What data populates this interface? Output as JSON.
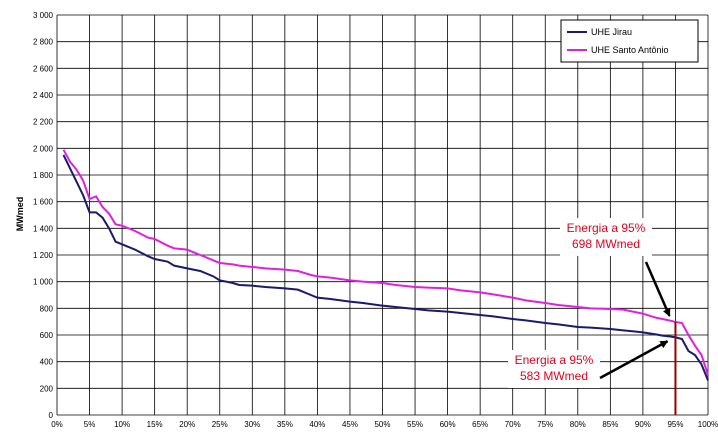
{
  "chart_data": {
    "type": "line",
    "title": "",
    "xlabel": "",
    "ylabel": "MWmed",
    "xlim": [
      0,
      100
    ],
    "ylim": [
      0,
      3000
    ],
    "x_ticks": [
      "0%",
      "5%",
      "10%",
      "15%",
      "20%",
      "25%",
      "30%",
      "35%",
      "40%",
      "45%",
      "50%",
      "55%",
      "60%",
      "65%",
      "70%",
      "75%",
      "80%",
      "85%",
      "90%",
      "95%",
      "100%"
    ],
    "y_ticks": [
      "0",
      "200",
      "400",
      "600",
      "800",
      "1 000",
      "1 200",
      "1 400",
      "1 600",
      "1 800",
      "2 000",
      "2 200",
      "2 400",
      "2 600",
      "2 800",
      "3 000"
    ],
    "grid": true,
    "legend_position": "top-right",
    "series": [
      {
        "name": "UHE Jirau",
        "color": "#1a1a6e",
        "x": [
          1,
          2,
          3,
          4,
          5,
          6,
          7,
          8,
          9,
          10,
          12,
          14,
          15,
          17,
          18,
          20,
          22,
          24,
          25,
          27,
          28,
          30,
          32,
          35,
          37,
          39,
          40,
          42,
          45,
          47,
          50,
          52,
          55,
          57,
          60,
          62,
          65,
          67,
          70,
          72,
          75,
          77,
          80,
          82,
          85,
          87,
          90,
          92,
          93,
          94,
          95,
          96,
          97,
          98,
          99,
          100
        ],
        "y": [
          1950,
          1850,
          1750,
          1650,
          1520,
          1520,
          1480,
          1400,
          1300,
          1280,
          1240,
          1190,
          1170,
          1150,
          1120,
          1100,
          1080,
          1040,
          1010,
          990,
          975,
          970,
          960,
          950,
          940,
          900,
          880,
          870,
          850,
          840,
          820,
          810,
          795,
          785,
          775,
          765,
          750,
          740,
          720,
          710,
          690,
          680,
          660,
          655,
          645,
          635,
          620,
          605,
          595,
          590,
          583,
          570,
          480,
          450,
          380,
          260
        ]
      },
      {
        "name": "UHE Santo Antônio",
        "color": "#e020e0",
        "x": [
          1,
          2,
          3,
          4,
          5,
          6,
          7,
          8,
          9,
          10,
          12,
          14,
          15,
          17,
          18,
          20,
          22,
          24,
          25,
          27,
          28,
          30,
          32,
          35,
          37,
          39,
          40,
          42,
          45,
          47,
          50,
          52,
          55,
          57,
          60,
          62,
          65,
          67,
          70,
          72,
          75,
          77,
          80,
          82,
          85,
          87,
          90,
          92,
          93,
          94,
          95,
          96,
          97,
          98,
          99,
          100
        ],
        "y": [
          1990,
          1900,
          1840,
          1760,
          1620,
          1640,
          1560,
          1510,
          1430,
          1420,
          1380,
          1330,
          1320,
          1270,
          1250,
          1240,
          1200,
          1160,
          1140,
          1130,
          1120,
          1110,
          1100,
          1090,
          1080,
          1050,
          1040,
          1030,
          1010,
          1000,
          990,
          975,
          960,
          955,
          950,
          935,
          920,
          905,
          880,
          860,
          840,
          825,
          810,
          800,
          795,
          790,
          760,
          730,
          720,
          710,
          698,
          690,
          600,
          520,
          450,
          300
        ]
      }
    ],
    "annotations": [
      {
        "id": "santo",
        "lines": [
          "Energia a 95%",
          "698 MWmed"
        ],
        "x": 95,
        "y": 698
      },
      {
        "id": "jirau",
        "lines": [
          "Energia a 95%",
          "583 MWmed"
        ],
        "x": 95,
        "y": 583
      }
    ],
    "marker_line": {
      "x": 95,
      "color": "#990000"
    }
  }
}
